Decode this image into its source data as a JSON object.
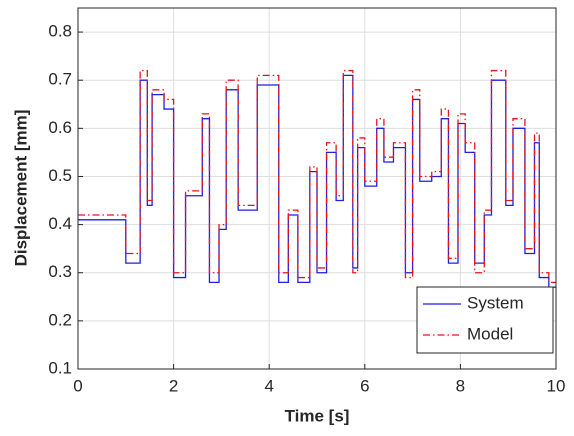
{
  "chart_data": {
    "type": "line",
    "x_label": "Time [s]",
    "y_label": "Displacement [mm]",
    "xlim": [
      0,
      10
    ],
    "xticks": [
      0,
      2,
      4,
      6,
      8,
      10
    ],
    "ylim": [
      0.1,
      0.85
    ],
    "yticks": [
      0.1,
      0.2,
      0.3,
      0.4,
      0.5,
      0.6,
      0.7,
      0.8
    ],
    "grid": true,
    "legend": "lower right",
    "x": [
      0,
      1,
      1,
      1.3,
      1.3,
      1.45,
      1.45,
      1.55,
      1.55,
      1.8,
      1.8,
      2,
      2,
      2.25,
      2.25,
      2.6,
      2.6,
      2.75,
      2.75,
      2.95,
      2.95,
      3.1,
      3.1,
      3.35,
      3.35,
      3.75,
      3.75,
      4.2,
      4.2,
      4.4,
      4.4,
      4.6,
      4.6,
      4.85,
      4.85,
      5,
      5,
      5.2,
      5.2,
      5.4,
      5.4,
      5.55,
      5.55,
      5.75,
      5.75,
      5.85,
      5.85,
      6,
      6,
      6.25,
      6.25,
      6.4,
      6.4,
      6.6,
      6.6,
      6.85,
      6.85,
      7,
      7,
      7.15,
      7.15,
      7.4,
      7.4,
      7.6,
      7.6,
      7.75,
      7.75,
      7.95,
      7.95,
      8.1,
      8.1,
      8.3,
      8.3,
      8.5,
      8.5,
      8.65,
      8.65,
      8.95,
      8.95,
      9.1,
      9.1,
      9.35,
      9.35,
      9.55,
      9.55,
      9.65,
      9.65,
      9.85,
      9.85,
      10
    ],
    "series": [
      {
        "name": "System",
        "color": "#1f1fe0",
        "dash": "solid",
        "values": [
          0.41,
          0.41,
          0.32,
          0.32,
          0.7,
          0.7,
          0.44,
          0.44,
          0.67,
          0.67,
          0.64,
          0.64,
          0.29,
          0.29,
          0.46,
          0.46,
          0.62,
          0.62,
          0.28,
          0.28,
          0.39,
          0.39,
          0.68,
          0.68,
          0.43,
          0.43,
          0.69,
          0.69,
          0.28,
          0.28,
          0.42,
          0.42,
          0.28,
          0.28,
          0.51,
          0.51,
          0.3,
          0.3,
          0.55,
          0.55,
          0.45,
          0.45,
          0.71,
          0.71,
          0.31,
          0.31,
          0.56,
          0.56,
          0.48,
          0.48,
          0.6,
          0.6,
          0.53,
          0.53,
          0.56,
          0.56,
          0.3,
          0.3,
          0.66,
          0.66,
          0.49,
          0.49,
          0.5,
          0.5,
          0.62,
          0.62,
          0.32,
          0.32,
          0.61,
          0.61,
          0.55,
          0.55,
          0.32,
          0.32,
          0.42,
          0.42,
          0.7,
          0.7,
          0.44,
          0.44,
          0.6,
          0.6,
          0.34,
          0.34,
          0.57,
          0.57,
          0.29,
          0.29,
          0.27,
          0.27
        ]
      },
      {
        "name": "Model",
        "color": "#e8141a",
        "dash": "dashdot",
        "values": [
          0.42,
          0.42,
          0.34,
          0.34,
          0.72,
          0.72,
          0.45,
          0.45,
          0.68,
          0.68,
          0.66,
          0.66,
          0.3,
          0.3,
          0.47,
          0.47,
          0.63,
          0.63,
          0.3,
          0.3,
          0.4,
          0.4,
          0.7,
          0.7,
          0.44,
          0.44,
          0.71,
          0.71,
          0.3,
          0.3,
          0.43,
          0.43,
          0.29,
          0.29,
          0.52,
          0.52,
          0.31,
          0.31,
          0.57,
          0.57,
          0.46,
          0.46,
          0.72,
          0.72,
          0.3,
          0.3,
          0.58,
          0.58,
          0.49,
          0.49,
          0.62,
          0.62,
          0.54,
          0.54,
          0.57,
          0.57,
          0.29,
          0.29,
          0.68,
          0.68,
          0.5,
          0.5,
          0.51,
          0.51,
          0.64,
          0.64,
          0.33,
          0.33,
          0.63,
          0.63,
          0.57,
          0.57,
          0.3,
          0.3,
          0.43,
          0.43,
          0.72,
          0.72,
          0.45,
          0.45,
          0.62,
          0.62,
          0.35,
          0.35,
          0.59,
          0.59,
          0.3,
          0.3,
          0.28,
          0.28
        ]
      }
    ]
  }
}
